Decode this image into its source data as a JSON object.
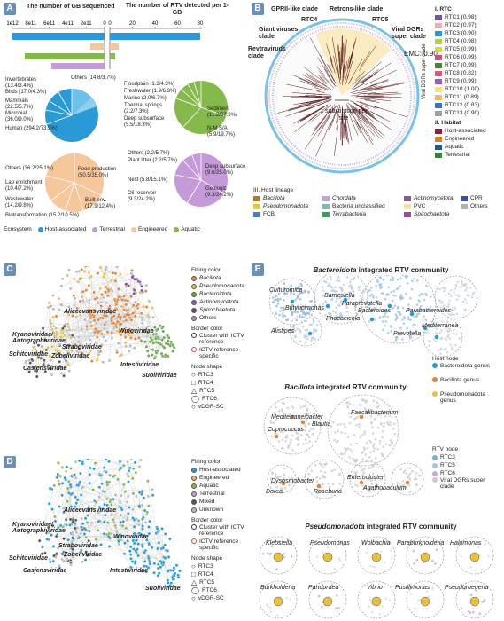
{
  "panels": {
    "A": "A",
    "B": "B",
    "C": "C",
    "D": "D",
    "E": "E"
  },
  "panelA": {
    "title_left": "The number of GB sequenced",
    "title_right": "The number of RTV detected per 1-GB",
    "left_ticks": [
      "1e12",
      "8e11",
      "6e11",
      "4e11",
      "2e11",
      "0"
    ],
    "right_ticks": [
      "0",
      "20",
      "40",
      "60",
      "80"
    ],
    "pies": [
      {
        "name": "host",
        "labels": [
          "Invertebrates (13.4/3.4%)",
          "Birds (17.0/4.3%)",
          "Mammals (22.5/5.7%)",
          "Microbial (36.0/9.0%)",
          "Human (294.2/73.9%)",
          "Others (14.8/3.7%)"
        ]
      },
      {
        "name": "aquatic",
        "labels": [
          "Floodplain (1.3/4.3%)",
          "Freshwater (1.9/6.3%)",
          "Marine (2.0/6.7%)",
          "Thermal springs (2.2/7.3%)",
          "Deep subsurface (5.5/18.3%)",
          "Sediment (11.2/37.3%)",
          "N-M S/A (5.9/19.7%)"
        ]
      },
      {
        "name": "engineered",
        "labels": [
          "Others (36.2/25.1%)",
          "Lab enrichment (10.4/7.2%)",
          "Wastewater (14.2/9.8%)",
          "Biotransformation (15.2/10.5%)",
          "Food production (50.5/35.0%)",
          "Built env. (17.9/12.4%)"
        ]
      },
      {
        "name": "terrestrial",
        "labels": [
          "Others (2.2/5.7%)",
          "Plant litter (2.2/5.7%)",
          "Nest (5.8/15.1%)",
          "Oil reservoir (9.3/24.2%)",
          "Deep subsurface (9.6/25.0%)",
          "Geologic (9.3/24.2%)"
        ]
      }
    ],
    "ecosystem_legend": {
      "title": "Ecosystem",
      "items": [
        "Host-associated",
        "Terrestrial",
        "Engineered",
        "Aquatic"
      ]
    },
    "colors": {
      "host": "#2a9ad6",
      "terrestrial": "#c49ad9",
      "engineered": "#f7c79c",
      "aquatic": "#86b94b"
    }
  },
  "panelB": {
    "clades": [
      "GPRII-like clade",
      "Retrons-like clade",
      "RTC4",
      "RTC5",
      "Giant viruses clade",
      "Viral DGRs super clade",
      "Revtraviruds clade",
      "EMC: 0.90",
      "1 substitution per site",
      "Viral DGRs super clade"
    ],
    "rtc_title": "I. RTC",
    "rtc": [
      {
        "label": "RTC1 (0.98)",
        "color": "#7b4ea3"
      },
      {
        "label": "RTC2 (0.97)",
        "color": "#f2a7c3"
      },
      {
        "label": "RTC3 (0.90)",
        "color": "#2a9ad6"
      },
      {
        "label": "RTC4 (0.98)",
        "color": "#b5d33c"
      },
      {
        "label": "RTC5 (0.99)",
        "color": "#d9d94a"
      },
      {
        "label": "RTC6 (0.99)",
        "color": "#c94f7c"
      },
      {
        "label": "RTC7 (0.99)",
        "color": "#3c8a3c"
      },
      {
        "label": "RTC8 (0.82)",
        "color": "#e0587a"
      },
      {
        "label": "RTC9 (0.99)",
        "color": "#9b59d0"
      },
      {
        "label": "RTC10 (1.00)",
        "color": "#f5e26b"
      },
      {
        "label": "RTC11 (0.89)",
        "color": "#f2b86b"
      },
      {
        "label": "RTC12 (0.83)",
        "color": "#3f6fd1"
      },
      {
        "label": "RTC13 (0.90)",
        "color": "#9aa3ad"
      }
    ],
    "habitat_title": "II. Habitat",
    "habitat": [
      {
        "label": "Host-associated",
        "color": "#8c1f3a"
      },
      {
        "label": "Engineered",
        "color": "#d9822b"
      },
      {
        "label": "Aquatic",
        "color": "#1f5a8c"
      },
      {
        "label": "Terrestrial",
        "color": "#2d8a3c"
      }
    ],
    "lineage_title": "III. Host lineage",
    "lineage": [
      {
        "label": "Bacillota",
        "color": "#b07a2a",
        "italic": true
      },
      {
        "label": "Chordata",
        "color": "#c9a2d6",
        "italic": true
      },
      {
        "label": "Actinomycetota",
        "color": "#8a5a8c",
        "italic": true
      },
      {
        "label": "CPR",
        "color": "#3c4fa3",
        "italic": false
      },
      {
        "label": "Pseudomonadota",
        "color": "#e0c63c",
        "italic": true
      },
      {
        "label": "Bacteria unclassified",
        "color": "#7fb7b7",
        "italic": false
      },
      {
        "label": "PVC",
        "color": "#f2e39a",
        "italic": false
      },
      {
        "label": "Others",
        "color": "#b0b0b0",
        "italic": false
      },
      {
        "label": "FCB",
        "color": "#4a7fc0",
        "italic": false
      },
      {
        "label": "Terrabacteria",
        "color": "#3c9a5a",
        "italic": true
      },
      {
        "label": "Spirochaetota",
        "color": "#a04aa0",
        "italic": true
      }
    ]
  },
  "panelC": {
    "labels": [
      "Aliceevansviridae",
      "Kyanoviridae/ Autographiviridae",
      "Schitoviridae",
      "Casjensviridae",
      "Zobellviridae",
      "Straboviridae",
      "Winoviridae",
      "Intestiviridae",
      "Suoliviridae"
    ],
    "filling_title": "Filling color",
    "filling": [
      {
        "label": "Bacillota",
        "color": "#e0843c"
      },
      {
        "label": "Pseudomonadota",
        "color": "#e8c23a"
      },
      {
        "label": "Bacteroidota",
        "color": "#6aa84f"
      },
      {
        "label": "Actinomycetota",
        "color": "#7a5bb0"
      },
      {
        "label": "Spirochaetota",
        "color": "#8a3b8a"
      },
      {
        "label": "Others",
        "color": "#999999"
      }
    ],
    "border_title": "Border color",
    "border": [
      "Cluster with ICTV reference",
      "ICTV reference specific"
    ],
    "shape_title": "Node shape",
    "shapes": [
      "RTC3",
      "RTC4",
      "RTC5",
      "RTC6",
      "vDGR-SC"
    ]
  },
  "panelD": {
    "labels": [
      "Aliceevansviridae",
      "Kyanoviridae/ Autographiviridae",
      "Schitoviridae",
      "Casjensviridae",
      "Zobellviridae",
      "Straboviridae",
      "Winoviridae",
      "Intestiviridae",
      "Suoliviridae"
    ],
    "filling_title": "Filling color",
    "filling": [
      {
        "label": "Host-associated",
        "color": "#2a9ad6"
      },
      {
        "label": "Engineered",
        "color": "#f4a86b"
      },
      {
        "label": "Aquatic",
        "color": "#86b94b"
      },
      {
        "label": "Terrestrial",
        "color": "#c49ad9"
      },
      {
        "label": "Mixed",
        "color": "#555555"
      },
      {
        "label": "Unknown",
        "color": "#bbbbbb"
      }
    ],
    "border_title": "Border color",
    "border": [
      "Cluster with ICTV reference",
      "ICTV reference specific"
    ],
    "shape_title": "Node shape",
    "shapes": [
      "RTC3",
      "RTC4",
      "RTC5",
      "RTC6",
      "vDGR-SC"
    ]
  },
  "panelE": {
    "title1": "Bacteroidota integrated RTV community",
    "title1_italic": "Bacteroidota",
    "title1_rest": " integrated RTV community",
    "genera1": [
      "Culturomica",
      "Barnesiella",
      "Butyricimonas",
      "Paraprevotella",
      "Bacteroides",
      "Parabacteroides",
      "Phocaeicola",
      "Mediterranea",
      "Alistipes",
      "Prevotella"
    ],
    "host_node_title": "Host node",
    "host_nodes": [
      {
        "label": "Bacteroidota genus",
        "color": "#2a9ad6"
      },
      {
        "label": "Bacillota genus",
        "color": "#e0843c"
      },
      {
        "label": "Pseudomonadota genus",
        "color": "#e8c23a"
      }
    ],
    "title2_italic": "Bacillota",
    "title2_rest": " integrated RTV community",
    "genera2": [
      "Mediterraneibacter",
      "Faecalibacterium",
      "Coprococcus",
      "Blautia",
      "Dysosmobacter",
      "Enterocloster",
      "Dorea",
      "Roseburia",
      "Agathobaculum"
    ],
    "rtv_node_title": "RTV node",
    "rtv_nodes": [
      {
        "label": "RTC3",
        "color": "#6fb3e0"
      },
      {
        "label": "RTC5",
        "color": "#9fc4de"
      },
      {
        "label": "RTC6",
        "color": "#c9a8d9"
      },
      {
        "label": "Viral DGRs super clade",
        "color": "#cccccc"
      }
    ],
    "title3_italic": "Pseudomonadota",
    "title3_rest": " integrated RTV community",
    "genera3": [
      "Klebsiella",
      "Pseudomonas",
      "Wolbachia",
      "Paraburkholderia",
      "Halomonas",
      "Burkholderia",
      "Pandoraea",
      "Vibrio",
      "Pusillimonas",
      "Pseudoruegeria"
    ]
  }
}
